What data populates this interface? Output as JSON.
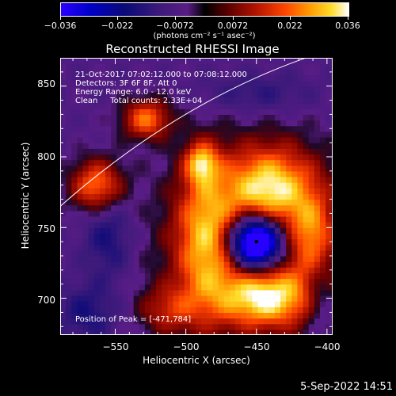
{
  "colorbar": {
    "tick_labels": [
      "−0.036",
      "−0.022",
      "−0.0072",
      "0.0072",
      "0.022",
      "0.036"
    ],
    "units": "(photons cm⁻² s⁻¹ asec⁻²)",
    "range": [
      -0.036,
      0.036
    ]
  },
  "chart_data": {
    "type": "heatmap",
    "title": "Reconstructed RHESSI Image",
    "xlabel": "Heliocentric X (arcsec)",
    "ylabel": "Heliocentric Y (arcsec)",
    "xlim": [
      -589,
      -396
    ],
    "ylim": [
      674,
      870
    ],
    "x_ticks": [
      -550,
      -500,
      -450,
      -400
    ],
    "y_ticks": [
      700,
      750,
      800,
      850
    ],
    "x_tick_labels": [
      "−550",
      "−500",
      "−450",
      "−400"
    ],
    "y_tick_labels": [
      "700",
      "750",
      "800",
      "850"
    ],
    "annotations": [
      "21-Oct-2017 07:02:12.000 to 07:08:12.000",
      "Detectors: 3F 6F 8F, Att 0",
      "Energy Range: 6.0 - 12.0 keV",
      "Clean     Total counts: 2.33E+04"
    ],
    "peak_label": "Position of Peak = [-471,784]",
    "peak": [
      -471,
      784
    ],
    "limb_line": [
      [
        -589,
        765
      ],
      [
        -506,
        838
      ],
      [
        -415,
        870
      ]
    ],
    "minimum_marker": [
      -450,
      740
    ],
    "sources": [
      {
        "x": -450,
        "y": 740,
        "sx": 14,
        "sy": 14,
        "amp": -0.07
      },
      {
        "x": -450,
        "y": 740,
        "sx": 42,
        "sy": 42,
        "amp": 0.024
      },
      {
        "x": -440,
        "y": 780,
        "sx": 22,
        "sy": 20,
        "amp": 0.028
      },
      {
        "x": -487,
        "y": 742,
        "sx": 14,
        "sy": 40,
        "amp": 0.022
      },
      {
        "x": -443,
        "y": 700,
        "sx": 24,
        "sy": 14,
        "amp": 0.03
      },
      {
        "x": -410,
        "y": 745,
        "sx": 10,
        "sy": 20,
        "amp": 0.016
      },
      {
        "x": -563,
        "y": 780,
        "sx": 13,
        "sy": 13,
        "amp": 0.03
      },
      {
        "x": -528,
        "y": 827,
        "sx": 12,
        "sy": 10,
        "amp": 0.028
      },
      {
        "x": -489,
        "y": 796,
        "sx": 8,
        "sy": 10,
        "amp": 0.026
      },
      {
        "x": -513,
        "y": 692,
        "sx": 14,
        "sy": 12,
        "amp": 0.016
      },
      {
        "x": -555,
        "y": 745,
        "sx": 12,
        "sy": 22,
        "amp": -0.012
      },
      {
        "x": -570,
        "y": 690,
        "sx": 14,
        "sy": 14,
        "amp": -0.011
      },
      {
        "x": -405,
        "y": 700,
        "sx": 8,
        "sy": 18,
        "amp": -0.012
      },
      {
        "x": -450,
        "y": 845,
        "sx": 28,
        "sy": 10,
        "amp": -0.008
      }
    ]
  },
  "footer": {
    "date": "5-Sep-2022 14:51"
  }
}
